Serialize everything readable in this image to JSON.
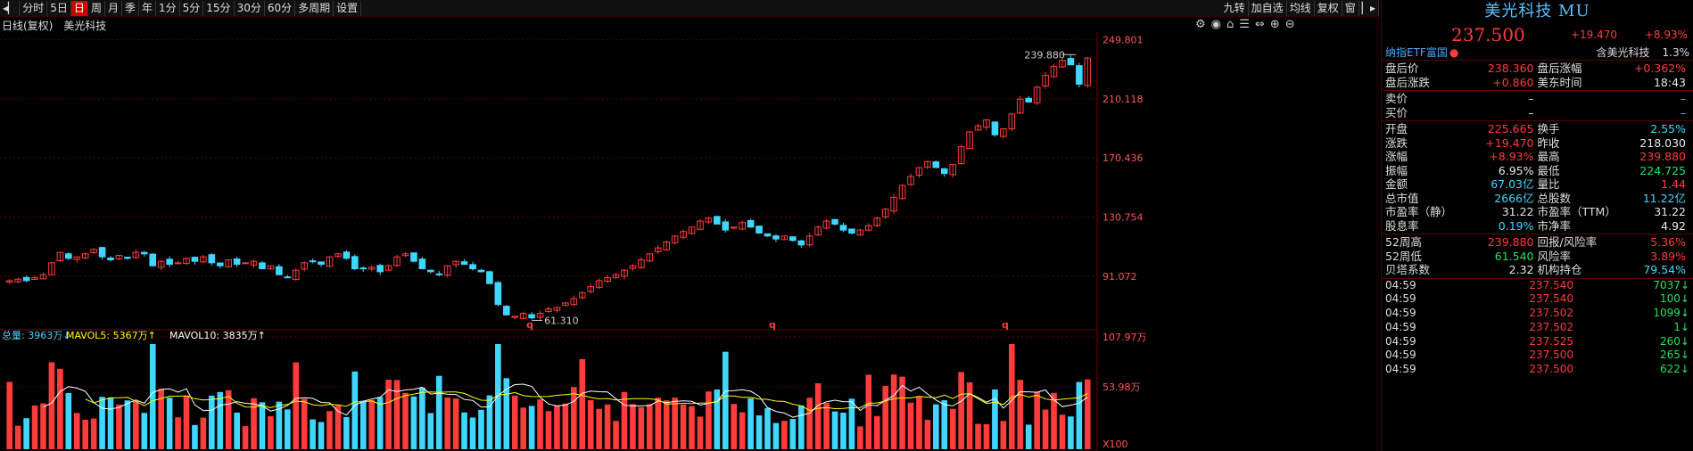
{
  "toolbar": {
    "items": [
      "分时",
      "5日",
      "日",
      "周",
      "月",
      "季",
      "年",
      "1分",
      "5分",
      "15分",
      "30分",
      "60分",
      "多周期",
      "设置"
    ],
    "active": "日",
    "right_items": [
      "九转",
      "加自选",
      "均线",
      "复权",
      "窗"
    ]
  },
  "chart": {
    "info_label": "日线(复权)",
    "stock_name": "美光科技",
    "y_axis": [
      "249.801",
      "210.118",
      "170.436",
      "130.754",
      "91.072"
    ],
    "high_label": "239.880",
    "low_label": "61.310",
    "q_markers": [
      "q",
      "q",
      "q"
    ],
    "volume_legend": {
      "total": "总量: 3963万↓",
      "mavol5": "MAVOL5: 5367万↑",
      "mavol10": "MAVOL10: 3835万↑"
    },
    "volume_axis": [
      "107.97万",
      "53.98万",
      "X100"
    ],
    "colors": {
      "up": "#ff3b3b",
      "down": "#3fd7ff",
      "ma5": "#ffffff",
      "ma10": "#ffff00"
    }
  },
  "chart_data": {
    "type": "candlestick",
    "note": "sampled approximate daily closes read off the chart",
    "closes": [
      88,
      89,
      88,
      90,
      92,
      100,
      107,
      103,
      104,
      106,
      109,
      104,
      102,
      105,
      103,
      107,
      106,
      98,
      101,
      99,
      100,
      103,
      101,
      104,
      100,
      98,
      102,
      99,
      100,
      101,
      96,
      98,
      92,
      90,
      95,
      100,
      101,
      99,
      104,
      106,
      103,
      96,
      96,
      97,
      94,
      98,
      104,
      106,
      101,
      96,
      94,
      92,
      98,
      101,
      99,
      96,
      94,
      86,
      72,
      65,
      64,
      66,
      63,
      66,
      69,
      70,
      73,
      76,
      80,
      84,
      88,
      90,
      92,
      95,
      98,
      102,
      106,
      110,
      114,
      118,
      121,
      124,
      128,
      130,
      126,
      122,
      124,
      127,
      124,
      120,
      118,
      116,
      118,
      115,
      112,
      118,
      124,
      128,
      126,
      122,
      120,
      122,
      125,
      130,
      136,
      144,
      152,
      158,
      164,
      168,
      164,
      160,
      166,
      178,
      188,
      192,
      196,
      186,
      190,
      200,
      210,
      208,
      218,
      226,
      232,
      236,
      233,
      220,
      237.5
    ],
    "y_range": [
      55,
      255
    ],
    "high": 239.88,
    "low": 61.31
  },
  "panel": {
    "title": "美光科技 MU",
    "price": "237.500",
    "change": "+19.470",
    "change_pct": "+8.93%",
    "etf_link": "纳指ETF富国",
    "etf_dot": "●",
    "etf_hold_label": "含美光科技",
    "etf_hold_value": "1.3%",
    "after": [
      {
        "l1": "盘后价",
        "v1": "238.360",
        "l2": "盘后涨幅",
        "v2": "+0.362%"
      },
      {
        "l1": "盘后涨跌",
        "v1": "+0.860",
        "l2": "美东时间",
        "v2": "18:43"
      }
    ],
    "bidask": [
      {
        "l": "卖价",
        "v": "–",
        "q": "–"
      },
      {
        "l": "买价",
        "v": "–",
        "q": "–"
      }
    ],
    "stats": [
      {
        "l1": "开盘",
        "v1": "225.665",
        "l2": "换手",
        "v2": "2.55%"
      },
      {
        "l1": "涨跌",
        "v1": "+19.470",
        "l2": "昨收",
        "v2": "218.030"
      },
      {
        "l1": "涨幅",
        "v1": "+8.93%",
        "l2": "最高",
        "v2": "239.880"
      },
      {
        "l1": "振幅",
        "v1": "6.95%",
        "l2": "最低",
        "v2": "224.725"
      },
      {
        "l1": "金额",
        "v1": "67.03亿",
        "l2": "量比",
        "v2": "1.44"
      },
      {
        "l1": "总市值",
        "v1": "2666亿",
        "l2": "总股数",
        "v2": "11.22亿"
      },
      {
        "l1": "市盈率（静）",
        "v1": "31.22",
        "l2": "市盈率（TTM）",
        "v2": "31.22"
      },
      {
        "l1": "股息率",
        "v1": "0.19%",
        "l2": "市净率",
        "v2": "4.92"
      }
    ],
    "stats2": [
      {
        "l1": "52周高",
        "v1": "239.880",
        "l2": "回报/风险率",
        "v2": "5.36%"
      },
      {
        "l1": "52周低",
        "v1": "61.540",
        "l2": "风险率",
        "v2": "3.89%"
      },
      {
        "l1": "贝塔系数",
        "v1": "2.32",
        "l2": "机构持仓",
        "v2": "79.54%"
      }
    ],
    "ticks": [
      {
        "t": "04:59",
        "p": "237.540",
        "q": "7037↓"
      },
      {
        "t": "04:59",
        "p": "237.540",
        "q": "100↓"
      },
      {
        "t": "04:59",
        "p": "237.502",
        "q": "1099↓"
      },
      {
        "t": "04:59",
        "p": "237.502",
        "q": "1↓"
      },
      {
        "t": "04:59",
        "p": "237.525",
        "q": "260↓"
      },
      {
        "t": "04:59",
        "p": "237.500",
        "q": "265↓"
      },
      {
        "t": "04:59",
        "p": "237.500",
        "q": "622↓"
      }
    ]
  }
}
